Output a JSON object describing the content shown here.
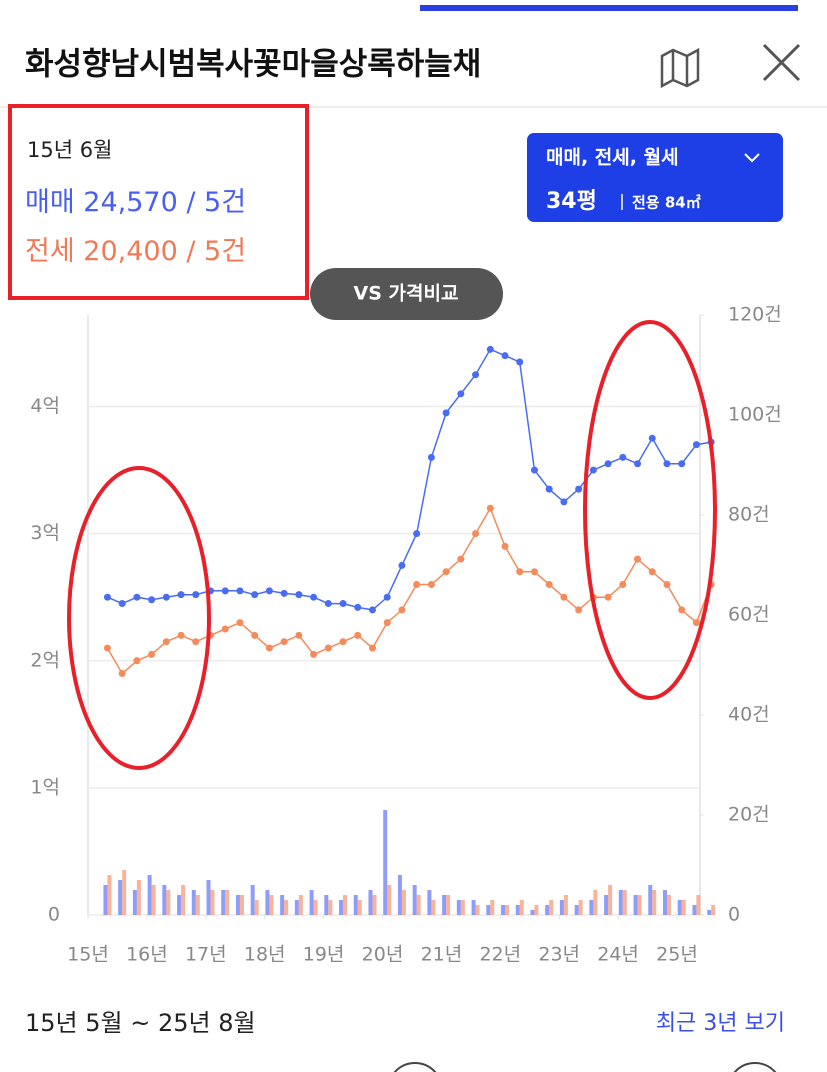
{
  "header": {
    "title": "화성향남시범복사꽃마을상록하늘채"
  },
  "info": {
    "date": "15년 6월",
    "rows": [
      {
        "label": "매매",
        "value": "24,570 / 5건"
      },
      {
        "label": "전세",
        "value": "20,400 / 5건"
      }
    ]
  },
  "filter": {
    "types": "매매, 전세, 월세",
    "size": "34평",
    "area": "전용 84㎡"
  },
  "compare_button": "VS 가격비교",
  "footer": {
    "range": "15년 5월 ~ 25년 8월",
    "link": "최근 3년 보기"
  },
  "chart_data": {
    "type": "line",
    "x": [
      15.33,
      15.58,
      15.83,
      16.08,
      16.33,
      16.58,
      16.83,
      17.08,
      17.33,
      17.58,
      17.83,
      18.08,
      18.33,
      18.58,
      18.83,
      19.08,
      19.33,
      19.58,
      19.83,
      20.08,
      20.33,
      20.58,
      20.83,
      21.08,
      21.33,
      21.58,
      21.83,
      22.08,
      22.33,
      22.58,
      22.83,
      23.08,
      23.33,
      23.58,
      23.83,
      24.08,
      24.33,
      24.58,
      24.83,
      25.08,
      25.33,
      25.58
    ],
    "xlim": [
      15,
      25.67
    ],
    "xticks": [
      {
        "value": 15,
        "label": "15년"
      },
      {
        "value": 16,
        "label": "16년"
      },
      {
        "value": 17,
        "label": "17년"
      },
      {
        "value": 18,
        "label": "18년"
      },
      {
        "value": 19,
        "label": "19년"
      },
      {
        "value": 20,
        "label": "20년"
      },
      {
        "value": 21,
        "label": "21년"
      },
      {
        "value": 22,
        "label": "22년"
      },
      {
        "value": 23,
        "label": "23년"
      },
      {
        "value": 24,
        "label": "24년"
      },
      {
        "value": 25,
        "label": "25년"
      }
    ],
    "ylim": [
      0,
      4.72
    ],
    "yticks": [
      0,
      {
        "value": 1,
        "label": "1억"
      },
      {
        "value": 2,
        "label": "2억"
      },
      {
        "value": 3,
        "label": "3억"
      },
      {
        "value": 4,
        "label": "4억"
      }
    ],
    "y2lim": [
      0,
      120
    ],
    "y2ticks": [
      0,
      {
        "value": 20,
        "label": "20건"
      },
      {
        "value": 40,
        "label": "40건"
      },
      {
        "value": 60,
        "label": "60건"
      },
      {
        "value": 80,
        "label": "80건"
      },
      {
        "value": 100,
        "label": "100건"
      },
      {
        "value": 120,
        "label": "120건"
      }
    ],
    "grid": true,
    "series": [
      {
        "type": "bar",
        "axis": "y2",
        "color": "#6b7cf5",
        "values": [
          6,
          7,
          5,
          8,
          6,
          4,
          5,
          7,
          5,
          4,
          6,
          5,
          4,
          3,
          5,
          4,
          3,
          4,
          5,
          21,
          8,
          6,
          5,
          4,
          3,
          3,
          2,
          2,
          2,
          1,
          2,
          3,
          2,
          3,
          4,
          5,
          4,
          6,
          5,
          3,
          2,
          1
        ]
      },
      {
        "type": "bar",
        "axis": "y2",
        "color": "#f59a7a",
        "values": [
          8,
          9,
          7,
          6,
          5,
          6,
          4,
          5,
          5,
          4,
          3,
          4,
          3,
          4,
          3,
          3,
          4,
          3,
          4,
          6,
          5,
          4,
          3,
          4,
          3,
          2,
          3,
          2,
          3,
          2,
          3,
          4,
          3,
          5,
          6,
          5,
          4,
          5,
          4,
          3,
          4,
          2
        ]
      },
      {
        "type": "line",
        "color": "#f58a5a",
        "values": [
          2.1,
          1.9,
          2.0,
          2.05,
          2.15,
          2.2,
          2.15,
          2.2,
          2.25,
          2.3,
          2.2,
          2.1,
          2.15,
          2.2,
          2.05,
          2.1,
          2.15,
          2.2,
          2.1,
          2.3,
          2.4,
          2.6,
          2.6,
          2.7,
          2.8,
          3.0,
          3.2,
          2.9,
          2.7,
          2.7,
          2.6,
          2.5,
          2.4,
          2.5,
          2.5,
          2.6,
          2.8,
          2.7,
          2.6,
          2.4,
          2.3,
          2.6
        ]
      },
      {
        "type": "line",
        "color": "#4a6cf0",
        "values": [
          2.5,
          2.45,
          2.5,
          2.48,
          2.5,
          2.52,
          2.52,
          2.55,
          2.55,
          2.55,
          2.52,
          2.55,
          2.53,
          2.52,
          2.5,
          2.45,
          2.45,
          2.42,
          2.4,
          2.5,
          2.75,
          3.0,
          3.6,
          3.95,
          4.1,
          4.25,
          4.45,
          4.4,
          4.35,
          3.5,
          3.35,
          3.25,
          3.35,
          3.5,
          3.55,
          3.6,
          3.55,
          3.75,
          3.55,
          3.55,
          3.7,
          3.72
        ]
      }
    ]
  }
}
